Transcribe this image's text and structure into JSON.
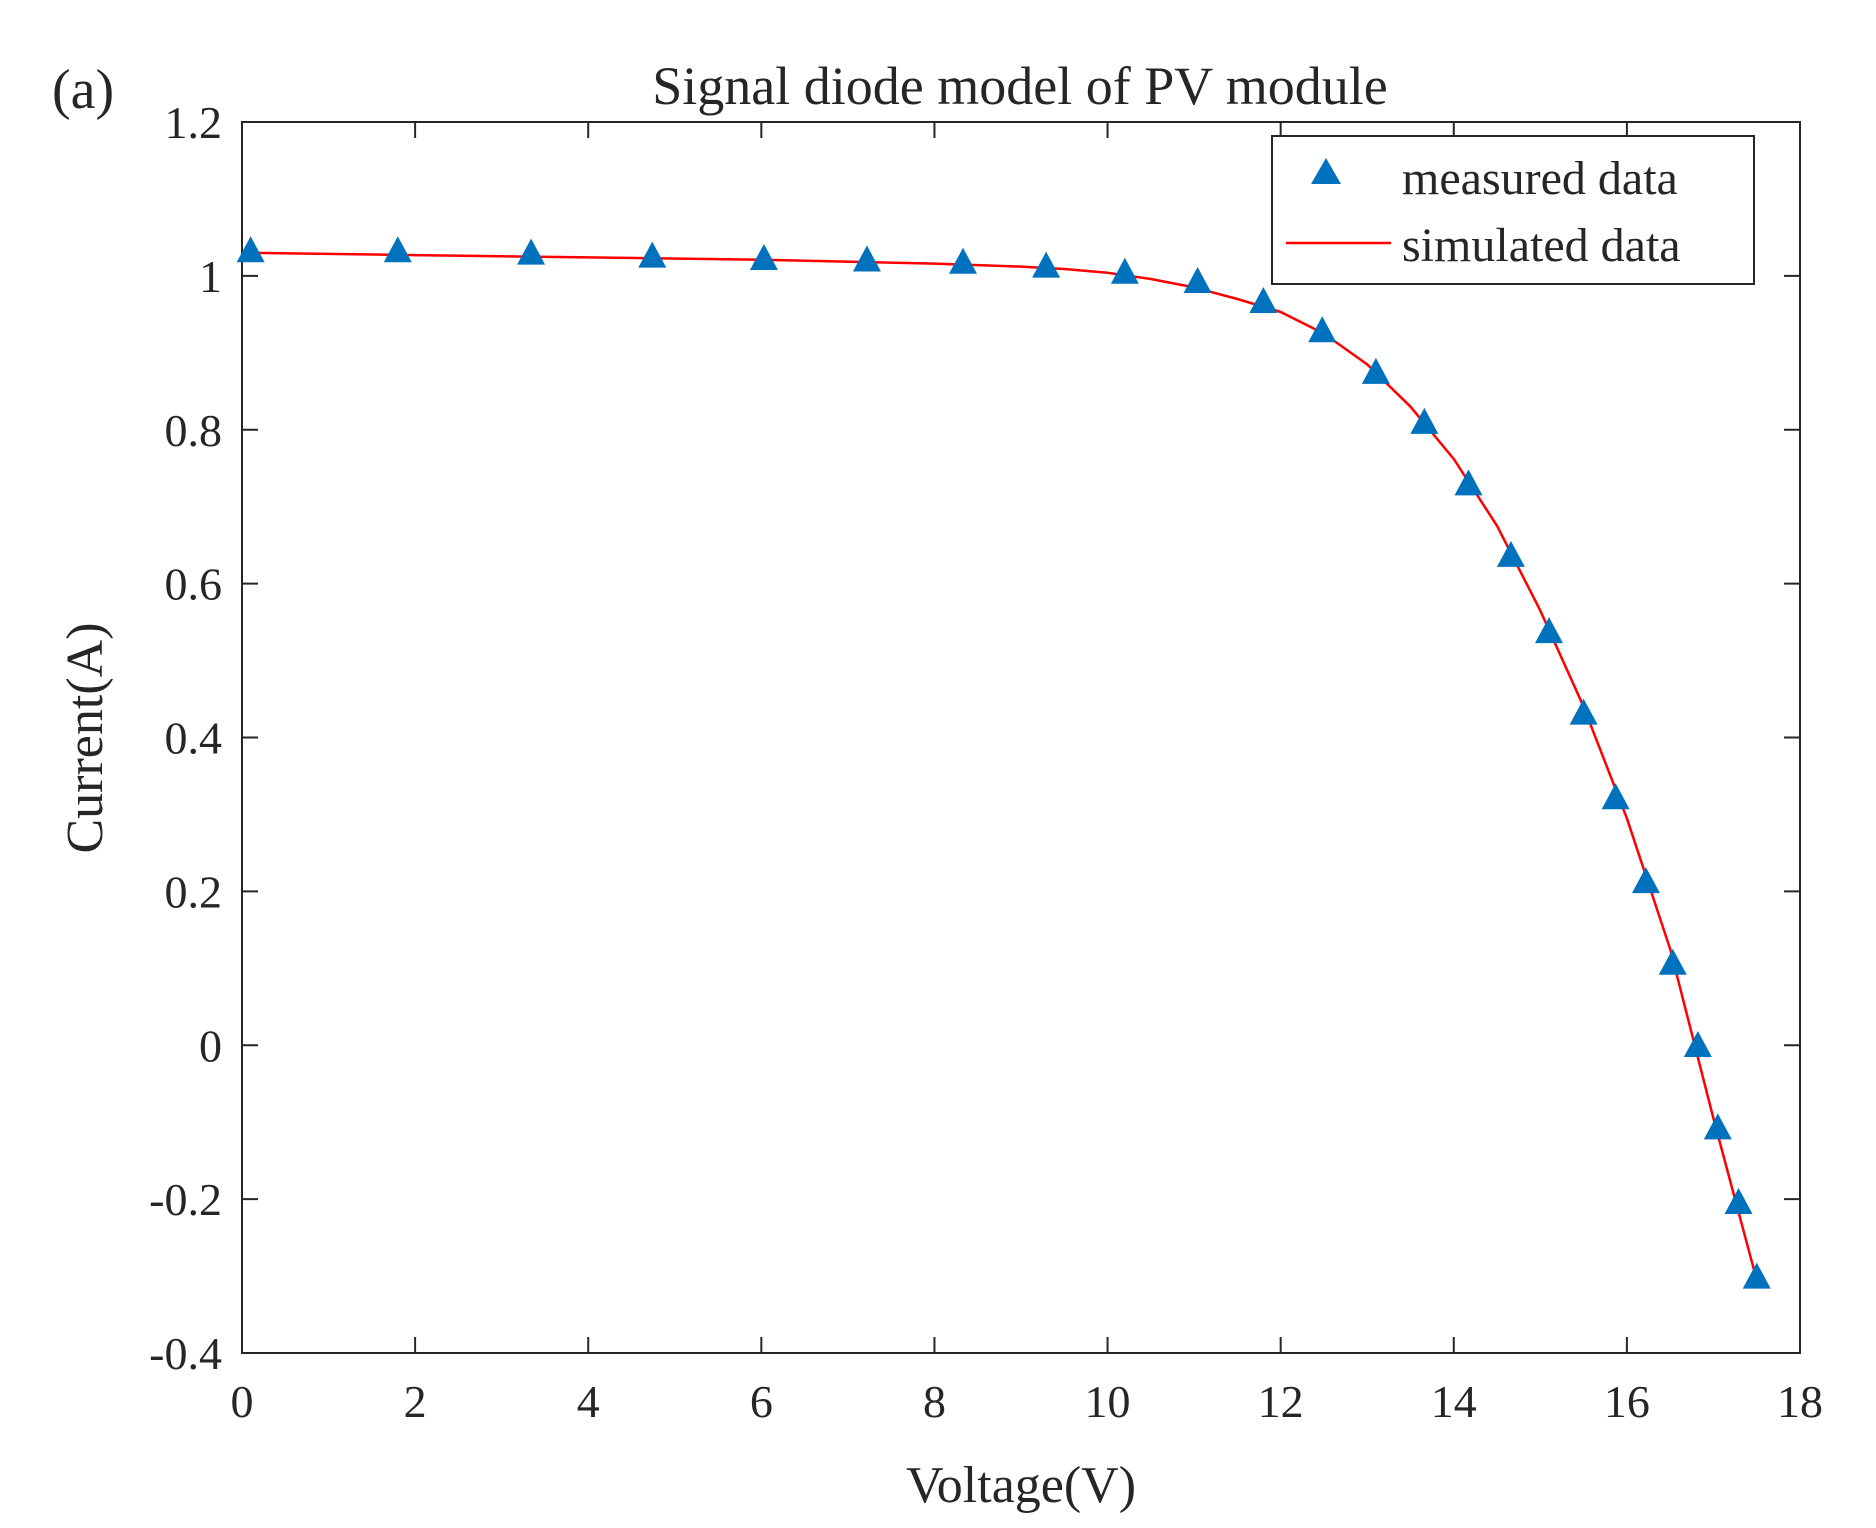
{
  "panel_label": "(a)",
  "colors": {
    "marker": "#0072BD",
    "line": "#FF0000",
    "axis": "#262626",
    "background": "#FFFFFF"
  },
  "chart_data": {
    "type": "line",
    "title": "Signal diode model of PV module",
    "xlabel": "Voltage(V)",
    "ylabel": "Current(A)",
    "xlim": [
      0,
      18
    ],
    "ylim": [
      -0.4,
      1.2
    ],
    "xticks": [
      0,
      2,
      4,
      6,
      8,
      10,
      12,
      14,
      16,
      18
    ],
    "xtick_labels": [
      "0",
      "2",
      "4",
      "6",
      "8",
      "10",
      "12",
      "14",
      "16",
      "18"
    ],
    "yticks": [
      -0.4,
      -0.2,
      0,
      0.2,
      0.4,
      0.6,
      0.8,
      1.0,
      1.2
    ],
    "ytick_labels": [
      "-0.4",
      "-0.2",
      "0",
      "0.2",
      "0.4",
      "0.6",
      "0.8",
      "1",
      "1.2"
    ],
    "grid": false,
    "legend_position": "top-right",
    "series": [
      {
        "name": "measured data",
        "style": "markers",
        "marker": "triangle-up",
        "x": [
          0.1,
          1.8,
          3.34,
          4.74,
          6.03,
          7.22,
          8.33,
          9.29,
          10.2,
          11.04,
          11.8,
          12.48,
          13.1,
          13.66,
          14.17,
          14.66,
          15.1,
          15.5,
          15.87,
          16.22,
          16.53,
          16.82,
          17.05,
          17.29,
          17.5
        ],
        "y": [
          1.032,
          1.032,
          1.029,
          1.025,
          1.022,
          1.02,
          1.017,
          1.012,
          1.004,
          0.992,
          0.966,
          0.928,
          0.874,
          0.809,
          0.729,
          0.636,
          0.537,
          0.431,
          0.321,
          0.212,
          0.106,
          -0.001,
          -0.108,
          -0.205,
          -0.302
        ]
      },
      {
        "name": "simulated data",
        "style": "line",
        "x": [
          0.1,
          2,
          4,
          6,
          8,
          9,
          9.5,
          10,
          10.5,
          11,
          11.5,
          12,
          12.5,
          13,
          13.5,
          14,
          14.5,
          15,
          15.5,
          16,
          16.5,
          17,
          17.5
        ],
        "y": [
          1.03,
          1.027,
          1.024,
          1.021,
          1.016,
          1.012,
          1.009,
          1.004,
          0.996,
          0.985,
          0.97,
          0.953,
          0.925,
          0.885,
          0.83,
          0.762,
          0.675,
          0.565,
          0.44,
          0.295,
          0.125,
          -0.095,
          -0.305
        ]
      }
    ]
  }
}
